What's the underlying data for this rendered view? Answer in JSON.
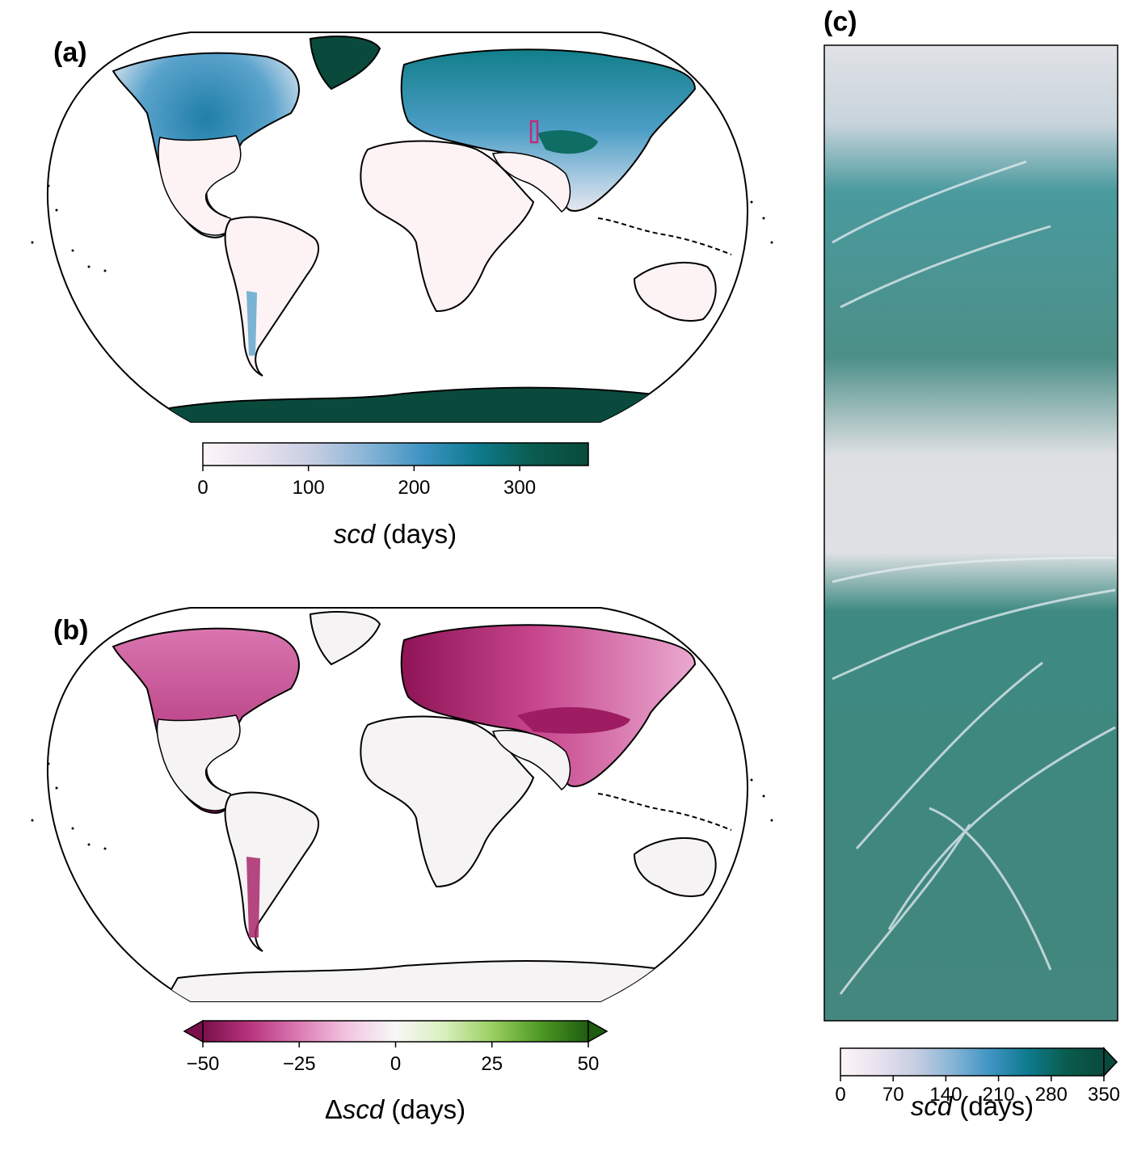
{
  "panels": {
    "a": {
      "label": "(a)"
    },
    "b": {
      "label": "(b)"
    },
    "c": {
      "label": "(c)"
    }
  },
  "colorbars": {
    "a": {
      "ticks": [
        "0",
        "100",
        "200",
        "300"
      ],
      "tick_values": [
        0,
        100,
        200,
        300
      ],
      "range": [
        0,
        365
      ],
      "title_italic": "scd",
      "title_rest": " (days)",
      "stops": [
        "#fdf5f7",
        "#e8e2ee",
        "#c6cde2",
        "#86b4d6",
        "#3d93c2",
        "#0e7a8d",
        "#0a5c4e",
        "#0a4a3c"
      ]
    },
    "b": {
      "ticks": [
        "−50",
        "−25",
        "0",
        "25",
        "50"
      ],
      "tick_values": [
        -50,
        -25,
        0,
        25,
        50
      ],
      "range": [
        -50,
        50
      ],
      "title_prefix": "Δ",
      "title_italic": "scd",
      "title_rest": " (days)",
      "stops": [
        "#7a0f4b",
        "#b8367f",
        "#dc7bb4",
        "#f2c5e0",
        "#f7f7f7",
        "#d9f0be",
        "#9bcf61",
        "#4e9a25",
        "#1f5c10"
      ]
    },
    "c": {
      "ticks": [
        "0",
        "70",
        "140",
        "210",
        "280",
        "350"
      ],
      "tick_values": [
        0,
        70,
        140,
        210,
        280,
        350
      ],
      "range": [
        0,
        350
      ],
      "title_italic": "scd",
      "title_rest": " (days)",
      "stops": [
        "#fdf5f7",
        "#e8e2ee",
        "#c6cde2",
        "#86b4d6",
        "#3d93c2",
        "#0e7a8d",
        "#0a5c4e",
        "#0a4a3c"
      ]
    }
  },
  "colors": {
    "land_a": "#fdf3f5",
    "land_b": "#f5f3f4",
    "snow_high": "#0a4a3c",
    "snow_mid": "#3d93c2",
    "negative_strong": "#a8286b",
    "region_box": "#c02a7a"
  }
}
